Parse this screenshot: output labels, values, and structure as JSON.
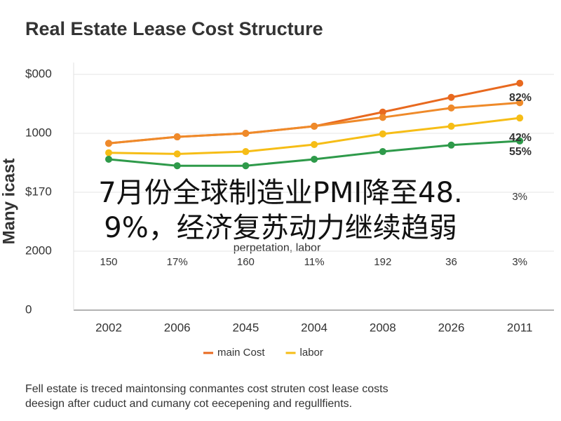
{
  "chart_data": {
    "type": "line",
    "title": "Real Estate Lease Cost Structure",
    "y_label": "Many icast",
    "categories": [
      "2002",
      "2006",
      "2045",
      "2004",
      "2008",
      "2026",
      "2011"
    ],
    "series": [
      {
        "name": "main Cost",
        "color": "#e8691f",
        "values": [
          2.83,
          2.94,
          3.0,
          3.12,
          3.36,
          3.61,
          3.85
        ]
      },
      {
        "color": "#ef8a2a",
        "values": [
          2.83,
          2.94,
          3.0,
          3.12,
          3.27,
          3.43,
          3.52
        ]
      },
      {
        "name": "labor",
        "color": "#f6bd16",
        "values": [
          2.67,
          2.65,
          2.69,
          2.81,
          2.99,
          3.12,
          3.26
        ]
      },
      {
        "color": "#2e9a4a",
        "values": [
          2.56,
          2.45,
          2.45,
          2.56,
          2.69,
          2.8,
          2.87
        ]
      }
    ],
    "ylim": [
      0,
      4.2
    ],
    "yticks": [
      0,
      {
        "value": 1,
        "label": "2000"
      },
      {
        "value": 2,
        "label": "$170"
      },
      {
        "value": 3,
        "label": "1000"
      },
      {
        "value": 4,
        "label": "$000"
      }
    ],
    "grid": true,
    "end_labels": [
      {
        "text": "82%",
        "color": "#e8691f"
      },
      {
        "text": "42%",
        "color": "#2e9a4a"
      },
      {
        "text": "55%",
        "color": "#2e9a4a"
      }
    ],
    "ghost_row": [
      "150",
      "17%",
      "160",
      "11%",
      "192",
      "36",
      "3%"
    ],
    "ghost_row_top": "3%",
    "ghost_note": "perpetation, labor",
    "headline": [
      "7月份全球制造业PMI降至48.",
      "9%，经济复苏动力继续趋弱"
    ],
    "caption": [
      "Fell estate is treced maintonsing conmantes cost struten cost lease costs",
      "deesign after cuduct and cumany cot eecepening and regullfients."
    ]
  }
}
